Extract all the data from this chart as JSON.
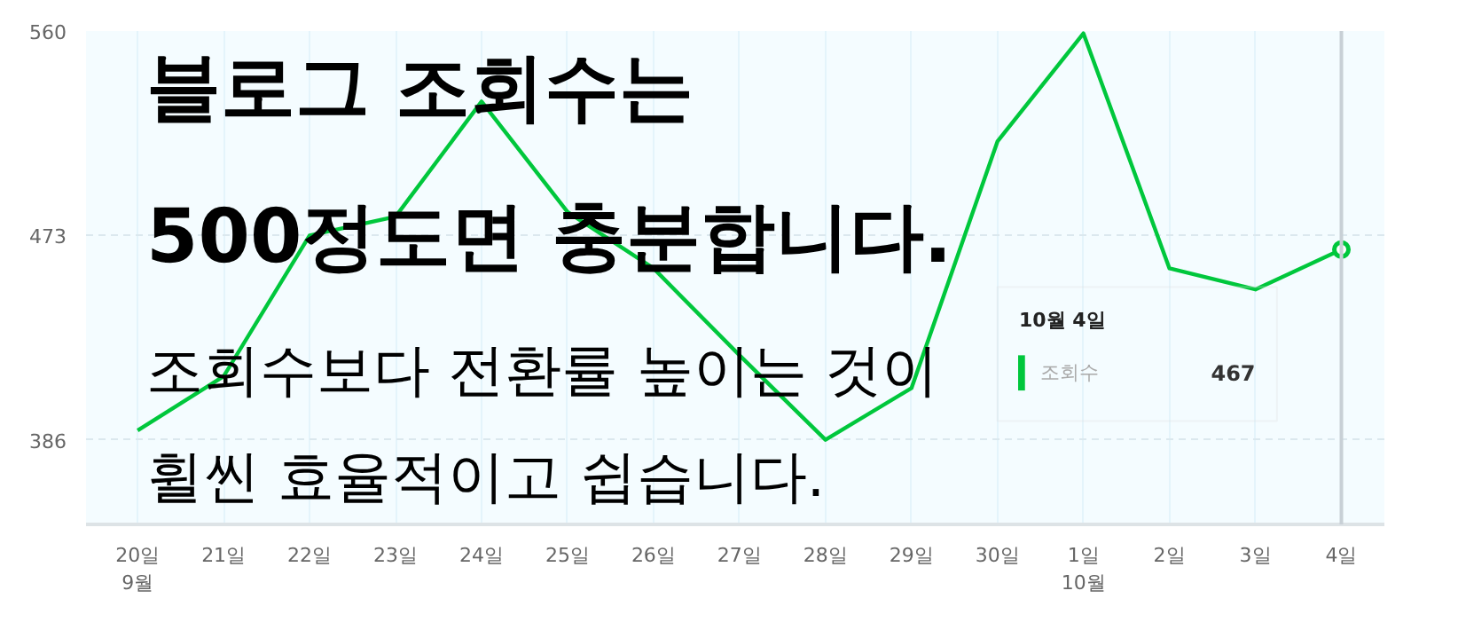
{
  "chart_data": {
    "type": "line",
    "categories": [
      "20일\n9월",
      "21일",
      "22일",
      "23일",
      "24일",
      "25일",
      "26일",
      "27일",
      "28일",
      "29일",
      "30일",
      "1일\n10월",
      "2일",
      "3일",
      "4일"
    ],
    "series": [
      {
        "name": "조회수",
        "color": "#00c73c",
        "values": [
          390,
          413,
          473,
          481,
          530,
          483,
          459,
          422,
          386,
          408,
          513,
          559,
          459,
          450,
          467
        ]
      }
    ],
    "ylim": [
      350,
      560
    ],
    "yticks": [
      386,
      473,
      560
    ],
    "grid": true,
    "marker": "none",
    "ref_lines": [
      {
        "axis": "x",
        "value": "4일",
        "color": "#c8d0d6"
      }
    ],
    "annotations": [
      "블로그 조회수는",
      "500정도면 충분합니다.",
      "조회수보다 전환률 높이는 것이",
      "휠씬 효율적이고 쉽습니다.",
      "10월 4일",
      "467"
    ]
  }
}
